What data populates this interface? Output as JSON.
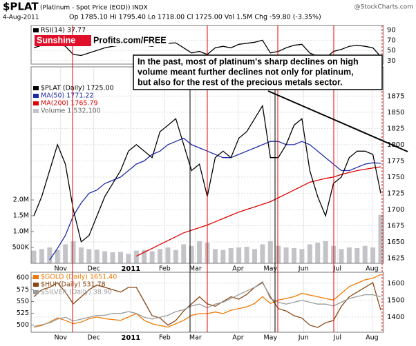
{
  "branding": {
    "brand": "Sunshine",
    "site": "Profits.com/FREE",
    "source": "@StockCharts.com"
  },
  "chart_data": [
    {
      "type": "line",
      "xlim": [
        0,
        44
      ],
      "ylim": [
        23,
        99
      ],
      "yticks": [
        30,
        50,
        70,
        90
      ],
      "grid": true,
      "series": [
        {
          "name": "RSI(14) 37.77",
          "color": "#000000",
          "values": [
            55,
            60,
            62,
            65,
            58,
            42,
            40,
            45,
            50,
            55,
            58,
            60,
            62,
            63,
            60,
            58,
            62,
            64,
            65,
            55,
            45,
            48,
            42,
            55,
            58,
            55,
            62,
            64,
            66,
            70,
            45,
            48,
            55,
            60,
            62,
            45,
            38,
            35,
            48,
            52,
            58,
            60,
            58,
            55,
            37.77
          ]
        }
      ]
    },
    {
      "type": "line",
      "title": "$PLAT",
      "subtitle": "(Platinum - Spot Price (EOD))  INDX",
      "date": "4-Aug-2011",
      "quote": "Op 1785.10  Hi 1795.40  Lo 1718.00  Cl 1725.00  Vol 1.5M  Chg -59.80 (-3.35%)",
      "annotation": [
        "In the past, most of platinum's sharp declines on high",
        "volume meant further declines not only for platinum,",
        "but also for the rest of the precious metals sector."
      ],
      "xlim": [
        0,
        44
      ],
      "xticks": [
        {
          "value": 3.4,
          "label": "Nov"
        },
        {
          "value": 7.6,
          "label": "Dec"
        },
        {
          "value": 12.3,
          "label": "2011"
        },
        {
          "value": 16.6,
          "label": "Feb"
        },
        {
          "value": 20.5,
          "label": "Mar"
        },
        {
          "value": 25.9,
          "label": "Apr"
        },
        {
          "value": 30,
          "label": "May"
        },
        {
          "value": 34.2,
          "label": "Jun"
        },
        {
          "value": 38.5,
          "label": "Jul"
        },
        {
          "value": 42.9,
          "label": "Aug"
        }
      ],
      "ylim": [
        1617,
        1920
      ],
      "yticks": [
        1625,
        1650,
        1675,
        1700,
        1725,
        1750,
        1775,
        1800,
        1825,
        1850,
        1875
      ],
      "y2lim": [
        0,
        6200000
      ],
      "y2ticks": [
        {
          "value": 500000,
          "label": "500K"
        },
        {
          "value": 1000000,
          "label": "1.0M"
        },
        {
          "value": 1500000,
          "label": "1.5M"
        },
        {
          "value": 2000000,
          "label": "2.0M"
        }
      ],
      "grid": true,
      "series": [
        {
          "name": "Volume 1,532,100",
          "type": "bar",
          "axis": "y2",
          "color": "#c4c4c8",
          "values": [
            400000,
            450000,
            500000,
            420000,
            600000,
            700000,
            500000,
            450000,
            430000,
            380000,
            350000,
            360000,
            300000,
            400000,
            420000,
            380000,
            450000,
            500000,
            420000,
            600000,
            550000,
            700000,
            650000,
            450000,
            420000,
            480000,
            500000,
            520000,
            450000,
            600000,
            700000,
            550000,
            500000,
            480000,
            450000,
            600000,
            650000,
            700000,
            550000,
            450000,
            500000,
            480000,
            550000,
            500000,
            1532100
          ]
        },
        {
          "name": "MA(200) 1765.79",
          "color": "#e00000",
          "values": [
            null,
            null,
            null,
            null,
            null,
            null,
            null,
            null,
            null,
            null,
            null,
            null,
            null,
            1628,
            1634,
            1640,
            1646,
            1652,
            1658,
            1664,
            1668,
            1672,
            1676,
            1681,
            1686,
            1691,
            1696,
            1700,
            1704,
            1708,
            1712,
            1718,
            1724,
            1730,
            1736,
            1742,
            1745,
            1748,
            1750,
            1754,
            1757,
            1760,
            1762,
            1764,
            1765.79
          ]
        },
        {
          "name": "MA(50) 1771.22",
          "color": "#1c2aa8",
          "values": [
            null,
            null,
            1622,
            1640,
            1660,
            1690,
            1710,
            1725,
            1730,
            1740,
            1745,
            1750,
            1760,
            1770,
            1775,
            1785,
            1790,
            1800,
            1805,
            1810,
            1800,
            1795,
            1790,
            1785,
            1780,
            1780,
            1785,
            1790,
            1795,
            1800,
            1805,
            1805,
            1800,
            1800,
            1805,
            1800,
            1790,
            1780,
            1770,
            1760,
            1760,
            1765,
            1770,
            1772,
            1771.22
          ]
        },
        {
          "name": "$PLAT (Daily) 1725.00",
          "color": "#000000",
          "values": [
            1690,
            1720,
            1760,
            1800,
            1770,
            1700,
            1650,
            1660,
            1690,
            1720,
            1740,
            1760,
            1790,
            1800,
            1790,
            1780,
            1820,
            1830,
            1840,
            1800,
            1760,
            1770,
            1720,
            1780,
            1790,
            1780,
            1810,
            1820,
            1840,
            1860,
            1780,
            1780,
            1800,
            1830,
            1840,
            1760,
            1720,
            1690,
            1740,
            1750,
            1780,
            1790,
            1790,
            1785,
            1725
          ]
        }
      ]
    },
    {
      "type": "line",
      "xlim": [
        0,
        44
      ],
      "xticks": [
        {
          "value": 3.4,
          "label": "Nov"
        },
        {
          "value": 7.6,
          "label": "Dec"
        },
        {
          "value": 12.3,
          "label": "2011"
        },
        {
          "value": 16.6,
          "label": "Feb"
        },
        {
          "value": 20.5,
          "label": "Mar"
        },
        {
          "value": 25.9,
          "label": "Apr"
        },
        {
          "value": 30,
          "label": "May"
        },
        {
          "value": 34.2,
          "label": "Jun"
        },
        {
          "value": 38.5,
          "label": "Jul"
        },
        {
          "value": 42.9,
          "label": "Aug"
        }
      ],
      "ylim": [
        1310,
        1665
      ],
      "yticks": [
        1400,
        1500,
        1600
      ],
      "y2lim": [
        485,
        612
      ],
      "y2ticks": [
        500,
        525,
        550,
        575,
        600
      ],
      "y3lim": [
        20,
        52
      ],
      "grid": true,
      "series": [
        {
          "name": "$GOLD (Daily) 1651.40",
          "color": "#f07800",
          "values": [
            1340,
            1350,
            1370,
            1395,
            1380,
            1360,
            1370,
            1390,
            1400,
            1390,
            1385,
            1380,
            1400,
            1420,
            1380,
            1360,
            1350,
            1340,
            1360,
            1380,
            1410,
            1420,
            1420,
            1430,
            1420,
            1440,
            1450,
            1460,
            1480,
            1520,
            1480,
            1500,
            1510,
            1520,
            1540,
            1530,
            1520,
            1510,
            1500,
            1540,
            1580,
            1600,
            1620,
            1630,
            1651.4
          ]
        },
        {
          "name": "$HUI (Daily) 531.78",
          "axis": "y2",
          "color": "#8b4513",
          "values": [
            560,
            575,
            580,
            590,
            570,
            545,
            560,
            575,
            585,
            580,
            575,
            570,
            580,
            580,
            550,
            520,
            515,
            500,
            510,
            530,
            545,
            560,
            545,
            540,
            550,
            560,
            555,
            565,
            580,
            590,
            560,
            535,
            530,
            520,
            515,
            500,
            495,
            505,
            510,
            540,
            560,
            570,
            580,
            590,
            531.78
          ]
        },
        {
          "name": "$SILVER (Daily) 38.90",
          "axis": "y3",
          "color": "#9a9a9a",
          "values": [
            23,
            24,
            25,
            27,
            28,
            26,
            27,
            28,
            29,
            29,
            30,
            30,
            31,
            30,
            28,
            27,
            28,
            29,
            31,
            32,
            34,
            35,
            33,
            35,
            36,
            38,
            40,
            42,
            44,
            47,
            38,
            36,
            35,
            36,
            37,
            36,
            35,
            35,
            34,
            36,
            38,
            39,
            40,
            40,
            38.9
          ]
        }
      ]
    }
  ]
}
